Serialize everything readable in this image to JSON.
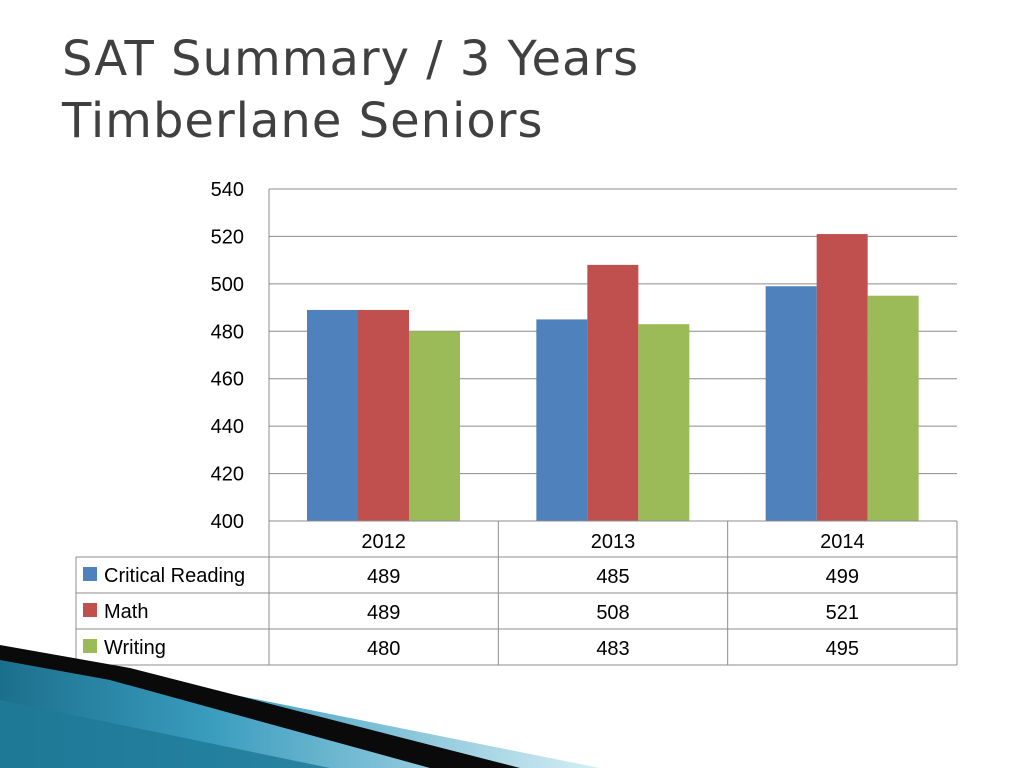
{
  "slide": {
    "title_line1": "SAT Summary / 3 Years",
    "title_line2": "Timberlane Seniors"
  },
  "chart_data": {
    "type": "bar",
    "categories": [
      "2012",
      "2013",
      "2014"
    ],
    "series": [
      {
        "name": "Critical Reading",
        "values": [
          489,
          485,
          499
        ],
        "color": "#4F81BD"
      },
      {
        "name": "Math",
        "values": [
          489,
          508,
          521
        ],
        "color": "#C0504D"
      },
      {
        "name": "Writing",
        "values": [
          480,
          483,
          495
        ],
        "color": "#9BBB59"
      }
    ],
    "ylim": [
      400,
      540
    ],
    "yticks": [
      400,
      420,
      440,
      460,
      480,
      500,
      520,
      540
    ],
    "grid": true,
    "legend": "data-table",
    "title": "",
    "xlabel": "",
    "ylabel": ""
  }
}
